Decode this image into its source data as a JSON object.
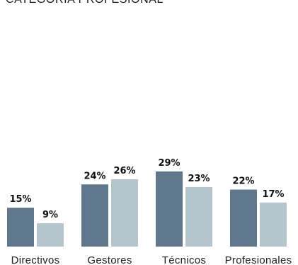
{
  "chart_data": {
    "type": "bar",
    "title": "CATEGORÍA PROFESIONAL",
    "categories": [
      "Directivos",
      "Gestores",
      "Técnicos",
      "Profesionales"
    ],
    "series": [
      {
        "color": "#5f778d",
        "values": [
          15,
          24,
          29,
          22
        ],
        "labels": [
          "15%",
          "24%",
          "29%",
          "22%"
        ]
      },
      {
        "color": "#b5c5ce",
        "values": [
          9,
          26,
          23,
          17
        ],
        "labels": [
          "9%",
          "26%",
          "23%",
          "17%"
        ]
      }
    ],
    "ylim": [
      0,
      30
    ],
    "grid": false,
    "legend": "none"
  }
}
